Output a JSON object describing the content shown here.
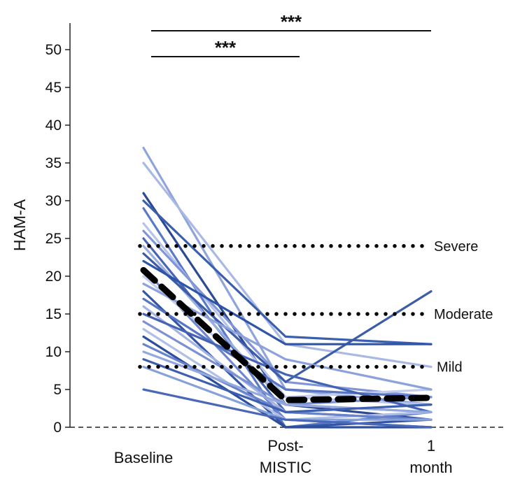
{
  "chart_data": {
    "type": "line",
    "ylabel": "HAM-A",
    "xlabel": "",
    "ylim": [
      0,
      53
    ],
    "yticks": [
      "0",
      "5",
      "10",
      "15",
      "20",
      "25",
      "30",
      "35",
      "40",
      "45",
      "50"
    ],
    "ytick_values": [
      0,
      5,
      10,
      15,
      20,
      25,
      30,
      35,
      40,
      45,
      50
    ],
    "categories": [
      {
        "line1": "Baseline",
        "line2": ""
      },
      {
        "line1": "Post-",
        "line2": "MISTIC"
      },
      {
        "line1": "1",
        "line2": "month"
      }
    ],
    "grid": false,
    "baseline_style": "dashed",
    "thresholds": [
      {
        "label": "Severe",
        "value": 24
      },
      {
        "label": "Moderate",
        "value": 15
      },
      {
        "label": "Mild",
        "value": 8
      }
    ],
    "significance": [
      {
        "label": "***",
        "from": 0,
        "to": 2
      },
      {
        "label": "***",
        "from": 0,
        "to": 1
      }
    ],
    "mean_series": {
      "name": "Mean",
      "values": [
        20.8,
        3.6,
        3.9
      ],
      "color": "#000000",
      "style": "dashed"
    },
    "series": [
      {
        "values": [
          37,
          5,
          3
        ],
        "color": "#8fa4dc"
      },
      {
        "values": [
          35,
          11,
          8
        ],
        "color": "#a9b8e4"
      },
      {
        "values": [
          31,
          3,
          1
        ],
        "color": "#2c4a94"
      },
      {
        "values": [
          30,
          12,
          11
        ],
        "color": "#3b5fae"
      },
      {
        "values": [
          29,
          0,
          2
        ],
        "color": "#5a7ac8"
      },
      {
        "values": [
          27,
          4,
          3
        ],
        "color": "#b6c3ea"
      },
      {
        "values": [
          26,
          6,
          4
        ],
        "color": "#7f95d6"
      },
      {
        "values": [
          25,
          2,
          1
        ],
        "color": "#4865b8"
      },
      {
        "values": [
          24,
          3,
          2
        ],
        "color": "#9aaee0"
      },
      {
        "values": [
          23,
          6,
          18
        ],
        "color": "#3d5ca8"
      },
      {
        "values": [
          22,
          11,
          11
        ],
        "color": "#2f55a8"
      },
      {
        "values": [
          21,
          1,
          0
        ],
        "color": "#6e87cf"
      },
      {
        "values": [
          20,
          4,
          5
        ],
        "color": "#c2cdee"
      },
      {
        "values": [
          19,
          9,
          5
        ],
        "color": "#8da2dc"
      },
      {
        "values": [
          18,
          0,
          1
        ],
        "color": "#3454a4"
      },
      {
        "values": [
          17,
          5,
          4
        ],
        "color": "#5875c4"
      },
      {
        "values": [
          16,
          2,
          3
        ],
        "color": "#a3b4e3"
      },
      {
        "values": [
          15,
          7,
          2
        ],
        "color": "#4463b4"
      },
      {
        "values": [
          14,
          3,
          4
        ],
        "color": "#7b91d4"
      },
      {
        "values": [
          13,
          1,
          2
        ],
        "color": "#b0bfe8"
      },
      {
        "values": [
          12,
          0,
          0
        ],
        "color": "#2d4e9c"
      },
      {
        "values": [
          11,
          2,
          1
        ],
        "color": "#6a84cc"
      },
      {
        "values": [
          10,
          3,
          2
        ],
        "color": "#94a8de"
      },
      {
        "values": [
          9,
          2,
          3
        ],
        "color": "#3e5fb0"
      },
      {
        "values": [
          8,
          1,
          1
        ],
        "color": "#86a0da"
      },
      {
        "values": [
          5,
          1,
          0
        ],
        "color": "#4a68b8"
      }
    ]
  }
}
